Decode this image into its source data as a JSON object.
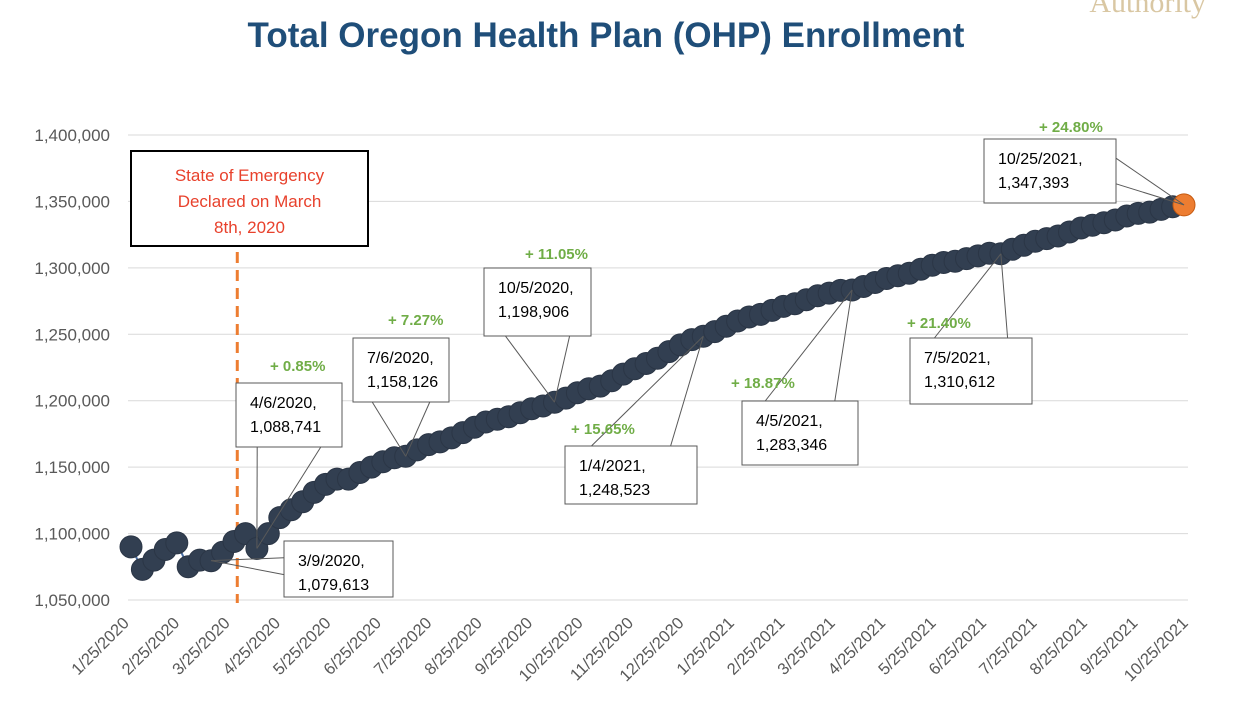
{
  "header": {
    "logo_text": "Authority"
  },
  "chart_data": {
    "type": "line",
    "title": "Total Oregon Health Plan (OHP) Enrollment",
    "xlabel": "",
    "ylabel": "",
    "ylim": [
      1050000,
      1400000
    ],
    "y_ticks": [
      "1,050,000",
      "1,100,000",
      "1,150,000",
      "1,200,000",
      "1,250,000",
      "1,300,000",
      "1,350,000",
      "1,400,000"
    ],
    "x_tick_labels": [
      "1/25/2020",
      "2/25/2020",
      "3/25/2020",
      "4/25/2020",
      "5/25/2020",
      "6/25/2020",
      "7/25/2020",
      "8/25/2020",
      "9/25/2020",
      "10/25/2020",
      "11/25/2020",
      "12/25/2020",
      "1/25/2021",
      "2/25/2021",
      "3/25/2021",
      "4/25/2021",
      "5/25/2021",
      "6/25/2021",
      "7/25/2021",
      "8/25/2021",
      "9/25/2021",
      "10/25/2021"
    ],
    "grid": true,
    "series": [
      {
        "color": "#323f51",
        "values": [
          [
            "2020-01-20",
            1090000
          ],
          [
            "2020-01-27",
            1073000
          ],
          [
            "2020-02-03",
            1080000
          ],
          [
            "2020-02-10",
            1088000
          ],
          [
            "2020-02-17",
            1093000
          ],
          [
            "2020-02-24",
            1075000
          ],
          [
            "2020-03-02",
            1080000
          ],
          [
            "2020-03-09",
            1079613
          ],
          [
            "2020-03-16",
            1086000
          ],
          [
            "2020-03-23",
            1094000
          ],
          [
            "2020-03-30",
            1100000
          ],
          [
            "2020-04-06",
            1088741
          ],
          [
            "2020-04-13",
            1100000
          ],
          [
            "2020-04-20",
            1112000
          ],
          [
            "2020-04-27",
            1118000
          ],
          [
            "2020-05-04",
            1124000
          ],
          [
            "2020-05-11",
            1131000
          ],
          [
            "2020-05-18",
            1137000
          ],
          [
            "2020-05-25",
            1141000
          ],
          [
            "2020-06-01",
            1141000
          ],
          [
            "2020-06-08",
            1146000
          ],
          [
            "2020-06-15",
            1150000
          ],
          [
            "2020-06-22",
            1154000
          ],
          [
            "2020-06-29",
            1157000
          ],
          [
            "2020-07-06",
            1158126
          ],
          [
            "2020-07-13",
            1163000
          ],
          [
            "2020-07-20",
            1167000
          ],
          [
            "2020-07-27",
            1169000
          ],
          [
            "2020-08-03",
            1172000
          ],
          [
            "2020-08-10",
            1176000
          ],
          [
            "2020-08-17",
            1180000
          ],
          [
            "2020-08-24",
            1184000
          ],
          [
            "2020-08-31",
            1186000
          ],
          [
            "2020-09-07",
            1188000
          ],
          [
            "2020-09-14",
            1191000
          ],
          [
            "2020-09-21",
            1194000
          ],
          [
            "2020-09-28",
            1196000
          ],
          [
            "2020-10-05",
            1198906
          ],
          [
            "2020-10-12",
            1202000
          ],
          [
            "2020-10-19",
            1206000
          ],
          [
            "2020-10-26",
            1209000
          ],
          [
            "2020-11-02",
            1211000
          ],
          [
            "2020-11-09",
            1215000
          ],
          [
            "2020-11-16",
            1220000
          ],
          [
            "2020-11-23",
            1224000
          ],
          [
            "2020-11-30",
            1228000
          ],
          [
            "2020-12-07",
            1232000
          ],
          [
            "2020-12-14",
            1237000
          ],
          [
            "2020-12-21",
            1242000
          ],
          [
            "2020-12-28",
            1246000
          ],
          [
            "2021-01-04",
            1248523
          ],
          [
            "2021-01-11",
            1252000
          ],
          [
            "2021-01-18",
            1256000
          ],
          [
            "2021-01-25",
            1260000
          ],
          [
            "2021-02-01",
            1263000
          ],
          [
            "2021-02-08",
            1265000
          ],
          [
            "2021-02-15",
            1268000
          ],
          [
            "2021-02-22",
            1271000
          ],
          [
            "2021-03-01",
            1273000
          ],
          [
            "2021-03-08",
            1276000
          ],
          [
            "2021-03-15",
            1279000
          ],
          [
            "2021-03-22",
            1281000
          ],
          [
            "2021-03-29",
            1283000
          ],
          [
            "2021-04-05",
            1283346
          ],
          [
            "2021-04-12",
            1286000
          ],
          [
            "2021-04-19",
            1289000
          ],
          [
            "2021-04-26",
            1292000
          ],
          [
            "2021-05-03",
            1294000
          ],
          [
            "2021-05-10",
            1296000
          ],
          [
            "2021-05-17",
            1299000
          ],
          [
            "2021-05-24",
            1302000
          ],
          [
            "2021-05-31",
            1304000
          ],
          [
            "2021-06-07",
            1305000
          ],
          [
            "2021-06-14",
            1307000
          ],
          [
            "2021-06-21",
            1309000
          ],
          [
            "2021-06-28",
            1311000
          ],
          [
            "2021-07-05",
            1310612
          ],
          [
            "2021-07-12",
            1314000
          ],
          [
            "2021-07-19",
            1317000
          ],
          [
            "2021-07-26",
            1320000
          ],
          [
            "2021-08-02",
            1322000
          ],
          [
            "2021-08-09",
            1324000
          ],
          [
            "2021-08-16",
            1327000
          ],
          [
            "2021-08-23",
            1330000
          ],
          [
            "2021-08-30",
            1332000
          ],
          [
            "2021-09-06",
            1334000
          ],
          [
            "2021-09-13",
            1336000
          ],
          [
            "2021-09-20",
            1339000
          ],
          [
            "2021-09-27",
            1341000
          ],
          [
            "2021-10-04",
            1342000
          ],
          [
            "2021-10-11",
            1344000
          ],
          [
            "2021-10-18",
            1346000
          ],
          [
            "2021-10-25",
            1347393
          ]
        ]
      }
    ],
    "emergency_box": {
      "lines": [
        "State of Emergency",
        "Declared on March",
        "8th, 2020"
      ],
      "color": "#e8412c",
      "line_date": "2020-03-25"
    },
    "callouts": [
      {
        "label_lines": [
          "3/9/2020,",
          "1,079,613"
        ],
        "date": "2020-03-09"
      },
      {
        "label_lines": [
          "4/6/2020,",
          "1,088,741"
        ],
        "date": "2020-04-06"
      },
      {
        "label_lines": [
          "7/6/2020,",
          "1,158,126"
        ],
        "date": "2020-07-06"
      },
      {
        "label_lines": [
          "10/5/2020,",
          "1,198,906"
        ],
        "date": "2020-10-05"
      },
      {
        "label_lines": [
          "1/4/2021,",
          "1,248,523"
        ],
        "date": "2021-01-04"
      },
      {
        "label_lines": [
          "4/5/2021,",
          "1,283,346"
        ],
        "date": "2021-04-05"
      },
      {
        "label_lines": [
          "7/5/2021,",
          "1,310,612"
        ],
        "date": "2021-07-05"
      },
      {
        "label_lines": [
          "10/25/2021,",
          "1,347,393"
        ],
        "date": "2021-10-25"
      }
    ],
    "percent_labels": [
      "+ 0.85%",
      "+ 7.27%",
      "+ 11.05%",
      "+ 15.65%",
      "+ 18.87%",
      "+ 21.40%",
      "+ 24.80%"
    ],
    "colors": {
      "series": "#323f51",
      "highlight_point": "#ed7d31",
      "emergency_line": "#ed7d31",
      "percent_text": "#70ad47",
      "title": "#1f4e79"
    }
  }
}
